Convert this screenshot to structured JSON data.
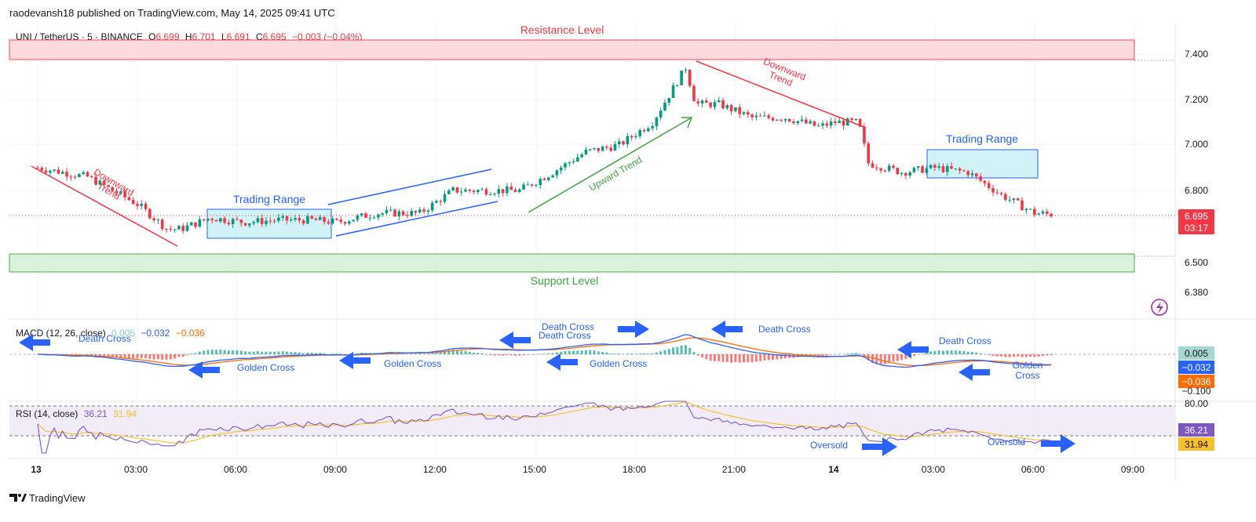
{
  "header": {
    "publisher": "raodevansh18 published on TradingView.com, May 14, 2025 09:41 UTC",
    "brand": "TradingView"
  },
  "symbol_line": {
    "name": "UNI / TetherUS · 5 · BINANCE",
    "o_label": "O",
    "o": "6.699",
    "h_label": "H",
    "h": "6.701",
    "l_label": "L",
    "l": "6.691",
    "c_label": "C",
    "c": "6.695",
    "change": "−0.003 (−0.04%)"
  },
  "colors": {
    "up": "#089981",
    "down": "#f23645",
    "annotation_red": "#f23645",
    "annotation_green": "#43a047",
    "annotation_blue": "#2962ff",
    "box_fill": "#b2ebf2",
    "macd_line": "#2962ff",
    "signal_line": "#ff6d00",
    "rsi_line": "#7e57c2",
    "rsi_ma": "#fbc02d",
    "resistance_fill": "#fcd7da",
    "support_fill": "#d7f0d7"
  },
  "annotations": {
    "resistance": "Resistance Level",
    "support": "Support Level",
    "downtrend_1": [
      "Downward",
      "Trend"
    ],
    "downtrend_2": [
      "Downward",
      "Trend"
    ],
    "uptrend": "Upward Trend",
    "range_1": "Trading Range",
    "range_2": "Trading Range"
  },
  "macd_panel": {
    "title": "MACD (12, 26, close)",
    "hist": "0.005",
    "macd": "−0.032",
    "signal": "−0.036",
    "labels": {
      "death_1": "Death Cross",
      "golden_1": "Golden Cross",
      "golden_2": "Golden Cross",
      "golden_3": "Golden Cross",
      "death_2": "Death Cross",
      "death_3": "Death Cross",
      "death_4": "Death Cross",
      "golden_4": [
        "Golden",
        "Cross"
      ]
    },
    "axis_tag_2": "−0.100"
  },
  "rsi_panel": {
    "title": "RSI (14, close)",
    "rsi": "36.21",
    "ma": "31.94",
    "level_80": "80.00",
    "oversold_1": "Oversold",
    "oversold_2": "Oversold"
  },
  "price_tag": {
    "price": "6.695",
    "countdown": "03:17"
  },
  "chart_data": {
    "type": "candlestick",
    "symbol": "UNI / TetherUS",
    "interval": "5",
    "exchange": "BINANCE",
    "y_axis": {
      "min": 6.3,
      "max": 7.5,
      "ticks": [
        "7.400",
        "7.200",
        "7.000",
        "6.800",
        "6.500",
        "6.380"
      ]
    },
    "x_ticks": [
      "13",
      "03:00",
      "06:00",
      "09:00",
      "12:00",
      "15:00",
      "18:00",
      "21:00",
      "14",
      "03:00",
      "06:00",
      "09:00"
    ],
    "price_path": [
      [
        0,
        6.9
      ],
      [
        1.5,
        6.86
      ],
      [
        3.0,
        6.74
      ],
      [
        3.9,
        6.63
      ],
      [
        4.3,
        6.63
      ],
      [
        5.2,
        6.68
      ],
      [
        6.2,
        6.66
      ],
      [
        7.2,
        6.67
      ],
      [
        8.3,
        6.67
      ],
      [
        9.0,
        6.66
      ],
      [
        10.2,
        6.7
      ],
      [
        11.5,
        6.7
      ],
      [
        12.5,
        6.8
      ],
      [
        13.5,
        6.8
      ],
      [
        14.5,
        6.8
      ],
      [
        15.5,
        6.88
      ],
      [
        16.5,
        6.97
      ],
      [
        17.5,
        7.0
      ],
      [
        18.5,
        7.1
      ],
      [
        19.5,
        7.34
      ],
      [
        19.8,
        7.18
      ],
      [
        20.5,
        7.18
      ],
      [
        21.5,
        7.12
      ],
      [
        22.5,
        7.12
      ],
      [
        23.5,
        7.08
      ],
      [
        24.0,
        7.1
      ],
      [
        24.7,
        7.1
      ],
      [
        25.0,
        6.92
      ],
      [
        26.0,
        6.88
      ],
      [
        27.0,
        6.9
      ],
      [
        28.0,
        6.88
      ],
      [
        29.0,
        6.78
      ],
      [
        30.0,
        6.7
      ],
      [
        30.5,
        6.695
      ]
    ],
    "resistance_zone": [
      7.37,
      7.46
    ],
    "support_zone": [
      6.47,
      6.55
    ],
    "last_price": 6.695,
    "macd": {
      "macd": -0.032,
      "signal": -0.036,
      "histogram": 0.005,
      "axis_ticks": [
        "0.005",
        "−0.100"
      ]
    },
    "rsi": {
      "rsi": 36.21,
      "ma": 31.94,
      "upper": 80
    }
  }
}
